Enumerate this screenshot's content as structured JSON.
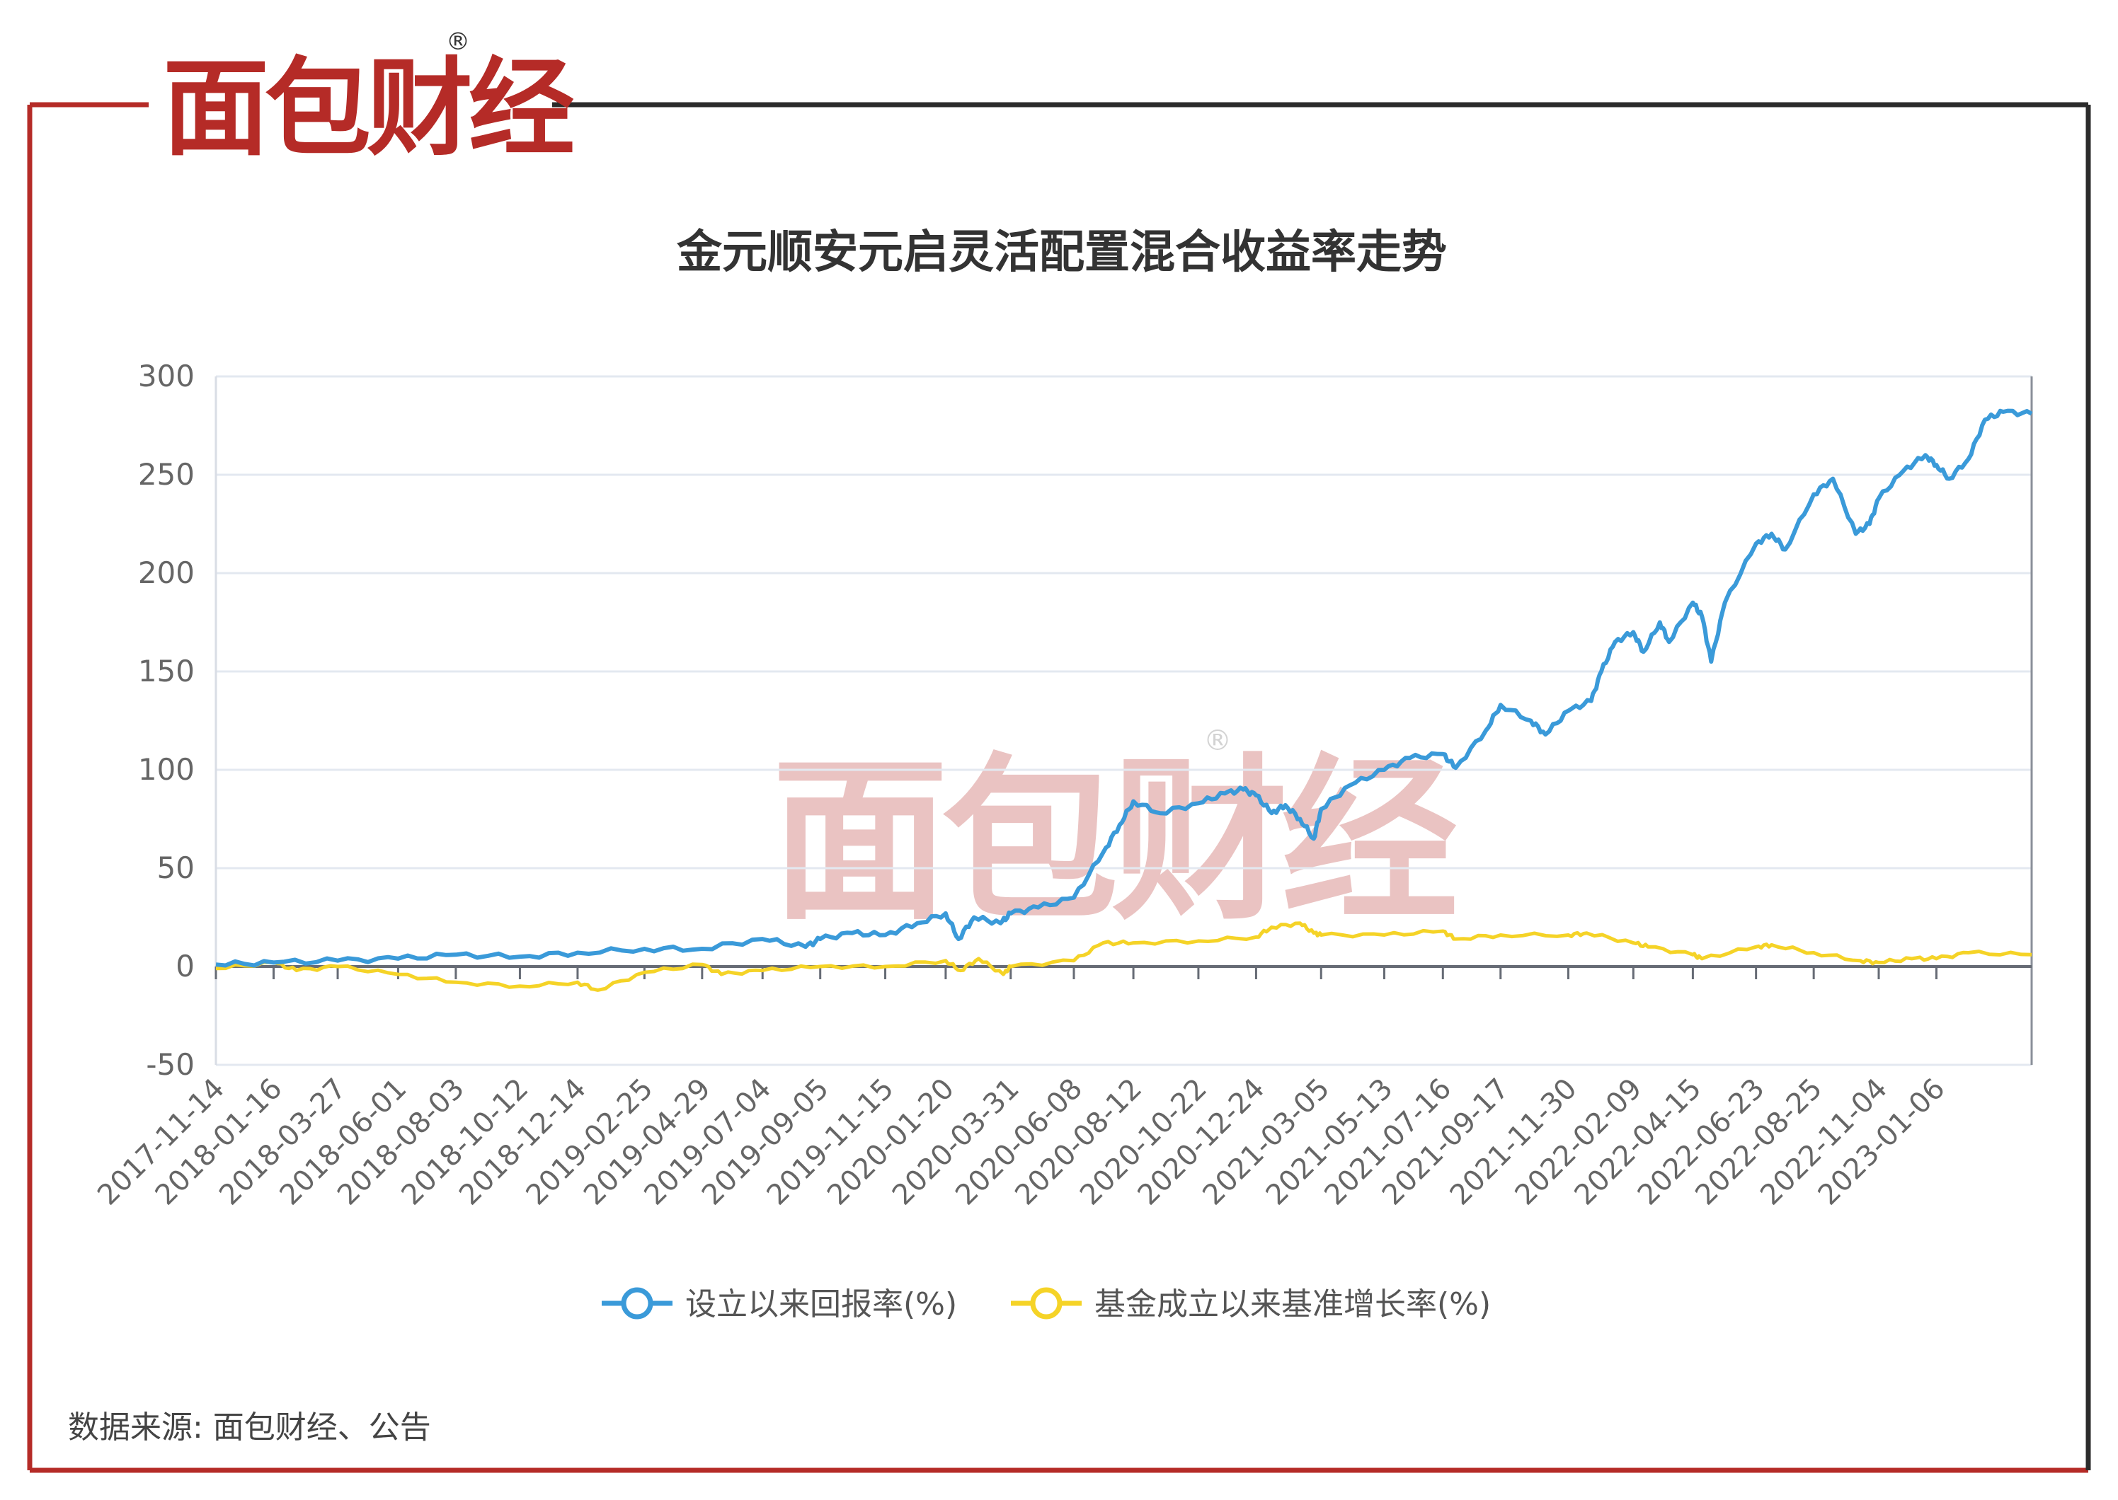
{
  "brand": {
    "name": "面包财经",
    "registered": "®",
    "colors": {
      "frame": "#b52b27",
      "dark": "#2b2b2b",
      "red": "#b52b27"
    }
  },
  "source_text": "数据来源: 面包财经、公告",
  "chart_data": {
    "type": "line",
    "title": "金元顺安元启灵活配置混合收益率走势",
    "xlabel": "",
    "ylabel": "",
    "ylim": [
      -50,
      300
    ],
    "y_ticks": [
      "300",
      "250",
      "200",
      "150",
      "100",
      "50",
      "0",
      "-50"
    ],
    "y_tick_values": [
      300,
      250,
      200,
      150,
      100,
      50,
      0,
      -50
    ],
    "grid": true,
    "legend_position": "bottom",
    "x_tick_labels": [
      "2017-11-14",
      "2018-01-16",
      "2018-03-27",
      "2018-06-01",
      "2018-08-03",
      "2018-10-12",
      "2018-12-14",
      "2019-02-25",
      "2019-04-29",
      "2019-07-04",
      "2019-09-05",
      "2019-11-15",
      "2020-01-20",
      "2020-03-31",
      "2020-06-08",
      "2020-08-12",
      "2020-10-22",
      "2020-12-24",
      "2021-03-05",
      "2021-05-13",
      "2021-07-16",
      "2021-09-17",
      "2021-11-30",
      "2022-02-09",
      "2022-04-15",
      "2022-06-23",
      "2022-08-25",
      "2022-11-04",
      "2023-01-06"
    ],
    "x_range": [
      "2017-11-14",
      "2023-04-20"
    ],
    "series": [
      {
        "name": "设立以来回报率(%)",
        "color": "#3a9ad9",
        "points": [
          [
            "2017-11-14",
            1
          ],
          [
            "2018-01-16",
            2
          ],
          [
            "2018-03-27",
            3
          ],
          [
            "2018-06-01",
            4
          ],
          [
            "2018-08-03",
            6
          ],
          [
            "2018-10-12",
            5
          ],
          [
            "2018-12-14",
            7
          ],
          [
            "2019-02-25",
            9
          ],
          [
            "2019-04-29",
            9
          ],
          [
            "2019-07-04",
            14
          ],
          [
            "2019-08-20",
            10
          ],
          [
            "2019-09-05",
            14
          ],
          [
            "2019-10-10",
            17
          ],
          [
            "2019-11-15",
            16
          ],
          [
            "2019-12-20",
            22
          ],
          [
            "2020-01-20",
            27
          ],
          [
            "2020-02-03",
            14
          ],
          [
            "2020-02-20",
            25
          ],
          [
            "2020-03-20",
            22
          ],
          [
            "2020-03-31",
            27
          ],
          [
            "2020-04-30",
            30
          ],
          [
            "2020-06-08",
            35
          ],
          [
            "2020-07-10",
            58
          ],
          [
            "2020-07-28",
            72
          ],
          [
            "2020-08-12",
            84
          ],
          [
            "2020-09-10",
            78
          ],
          [
            "2020-10-22",
            83
          ],
          [
            "2020-11-20",
            88
          ],
          [
            "2020-12-10",
            90
          ],
          [
            "2020-12-24",
            87
          ],
          [
            "2021-01-10",
            78
          ],
          [
            "2021-01-25",
            82
          ],
          [
            "2021-02-10",
            75
          ],
          [
            "2021-02-25",
            65
          ],
          [
            "2021-03-05",
            80
          ],
          [
            "2021-04-05",
            92
          ],
          [
            "2021-05-13",
            100
          ],
          [
            "2021-06-10",
            106
          ],
          [
            "2021-07-16",
            108
          ],
          [
            "2021-07-30",
            101
          ],
          [
            "2021-09-01",
            120
          ],
          [
            "2021-09-17",
            133
          ],
          [
            "2021-10-20",
            125
          ],
          [
            "2021-11-05",
            118
          ],
          [
            "2021-11-30",
            130
          ],
          [
            "2021-12-25",
            135
          ],
          [
            "2022-01-05",
            150
          ],
          [
            "2022-01-20",
            165
          ],
          [
            "2022-02-09",
            170
          ],
          [
            "2022-02-20",
            160
          ],
          [
            "2022-03-10",
            175
          ],
          [
            "2022-03-20",
            165
          ],
          [
            "2022-04-15",
            185
          ],
          [
            "2022-04-25",
            178
          ],
          [
            "2022-05-05",
            155
          ],
          [
            "2022-05-20",
            185
          ],
          [
            "2022-06-23",
            215
          ],
          [
            "2022-07-10",
            220
          ],
          [
            "2022-07-25",
            212
          ],
          [
            "2022-08-25",
            240
          ],
          [
            "2022-09-15",
            248
          ],
          [
            "2022-10-10",
            220
          ],
          [
            "2022-10-25",
            225
          ],
          [
            "2022-11-04",
            238
          ],
          [
            "2022-12-01",
            252
          ],
          [
            "2022-12-25",
            260
          ],
          [
            "2023-01-06",
            255
          ],
          [
            "2023-01-20",
            248
          ],
          [
            "2023-02-10",
            258
          ],
          [
            "2023-02-28",
            278
          ],
          [
            "2023-03-20",
            282
          ],
          [
            "2023-04-20",
            281
          ]
        ]
      },
      {
        "name": "基金成立以来基准增长率(%)",
        "color": "#f5d327",
        "points": [
          [
            "2017-11-14",
            -1
          ],
          [
            "2018-01-16",
            2
          ],
          [
            "2018-02-10",
            -2
          ],
          [
            "2018-03-27",
            0
          ],
          [
            "2018-06-01",
            -4
          ],
          [
            "2018-08-03",
            -8
          ],
          [
            "2018-10-12",
            -10
          ],
          [
            "2018-12-14",
            -8
          ],
          [
            "2019-01-05",
            -12
          ],
          [
            "2019-02-25",
            -3
          ],
          [
            "2019-04-29",
            1
          ],
          [
            "2019-05-20",
            -4
          ],
          [
            "2019-07-04",
            -2
          ],
          [
            "2019-09-05",
            0
          ],
          [
            "2019-11-15",
            0
          ],
          [
            "2020-01-20",
            3
          ],
          [
            "2020-02-05",
            -2
          ],
          [
            "2020-02-25",
            4
          ],
          [
            "2020-03-23",
            -4
          ],
          [
            "2020-03-31",
            0
          ],
          [
            "2020-06-08",
            3
          ],
          [
            "2020-07-10",
            12
          ],
          [
            "2020-08-12",
            12
          ],
          [
            "2020-10-22",
            13
          ],
          [
            "2020-12-24",
            15
          ],
          [
            "2021-01-10",
            20
          ],
          [
            "2021-02-10",
            22
          ],
          [
            "2021-02-25",
            17
          ],
          [
            "2021-03-05",
            16
          ],
          [
            "2021-05-13",
            16
          ],
          [
            "2021-07-16",
            18
          ],
          [
            "2021-07-30",
            14
          ],
          [
            "2021-09-17",
            16
          ],
          [
            "2021-11-30",
            16
          ],
          [
            "2021-12-20",
            17
          ],
          [
            "2022-02-09",
            12
          ],
          [
            "2022-02-25",
            10
          ],
          [
            "2022-04-15",
            6
          ],
          [
            "2022-04-25",
            4
          ],
          [
            "2022-06-23",
            10
          ],
          [
            "2022-07-10",
            11
          ],
          [
            "2022-08-25",
            7
          ],
          [
            "2022-10-15",
            3
          ],
          [
            "2022-11-04",
            2
          ],
          [
            "2022-12-10",
            4
          ],
          [
            "2023-01-06",
            4
          ],
          [
            "2023-02-10",
            7
          ],
          [
            "2023-04-20",
            6
          ]
        ]
      }
    ]
  }
}
